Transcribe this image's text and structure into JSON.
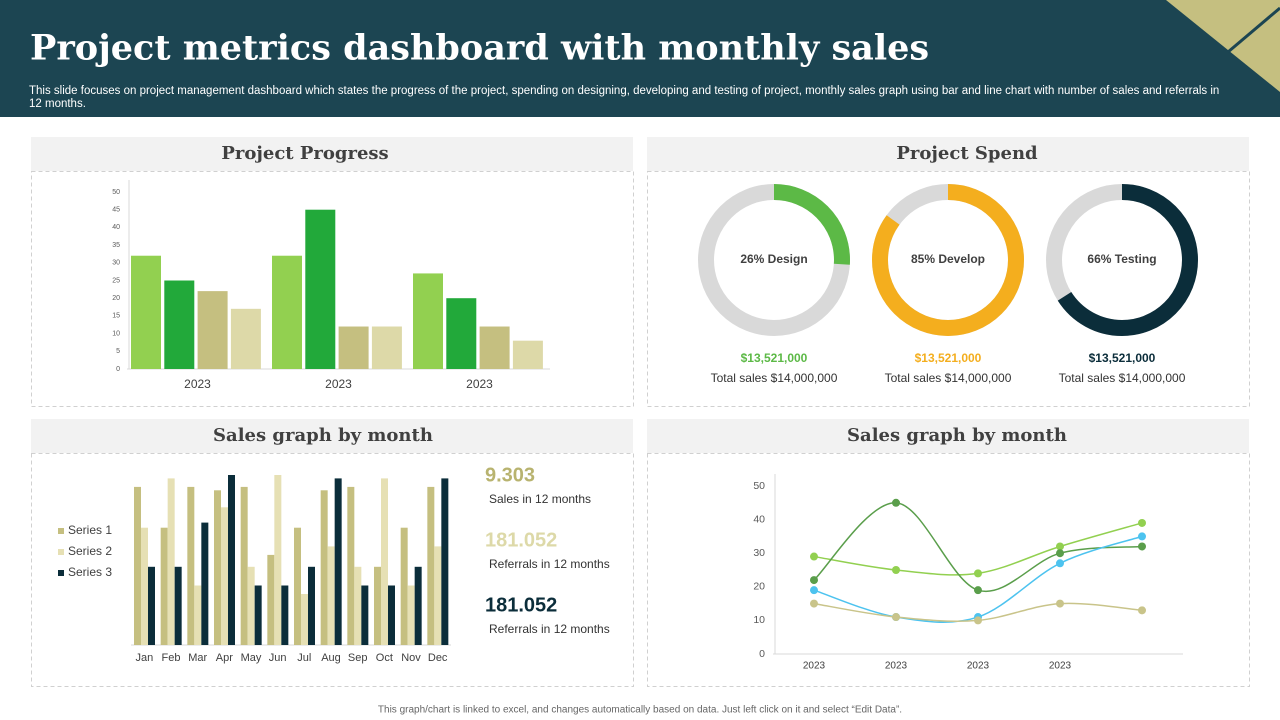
{
  "header": {
    "title": "Project metrics dashboard with monthly sales",
    "subtitle": "This slide focuses on project management dashboard which states the progress of the project, spending on designing, developing and testing of project, monthly sales graph using bar and line chart with number of sales and referrals in 12 months."
  },
  "chart_data": [
    {
      "type": "bar",
      "title": "Project Progress",
      "categories": [
        "2023",
        "2023",
        "2023"
      ],
      "series": [
        {
          "color": "#92d050",
          "values": [
            32,
            32,
            27
          ]
        },
        {
          "color": "#22a93a",
          "values": [
            25,
            45,
            20
          ]
        },
        {
          "color": "#c5bf80",
          "values": [
            22,
            12,
            12
          ]
        },
        {
          "color": "#ddd9a8",
          "values": [
            17,
            12,
            8
          ]
        }
      ],
      "ylim": [
        0,
        50
      ],
      "yticks": [
        0,
        5,
        10,
        15,
        20,
        25,
        30,
        35,
        40,
        45,
        50
      ]
    },
    {
      "type": "donut",
      "title": "Project Spend",
      "values": [
        26,
        85,
        66
      ],
      "labels": [
        "26% Design",
        "85% Develop",
        "66% Testing"
      ],
      "colors": [
        "#5cb946",
        "#f4ae1e",
        "#0b2d3a"
      ],
      "amounts": [
        "$13,521,000",
        "$13,521,000",
        "$13,521,000"
      ],
      "totals": [
        "Total sales $14,000,000",
        "Total sales $14,000,000",
        "Total sales $14,000,000"
      ],
      "track_color": "#d9d9d9"
    },
    {
      "type": "bar",
      "title": "Sales graph by month",
      "categories": [
        "Jan",
        "Feb",
        "Mar",
        "Apr",
        "May",
        "Jun",
        "Jul",
        "Aug",
        "Sep",
        "Oct",
        "Nov",
        "Dec"
      ],
      "series": [
        {
          "name": "Series 1",
          "color": "#c5bf80",
          "values": [
            9.3,
            6.9,
            9.3,
            9.1,
            9.3,
            5.3,
            6.9,
            9.1,
            9.3,
            4.6,
            6.9,
            9.3
          ]
        },
        {
          "name": "Series 2",
          "color": "#e6e0b4",
          "values": [
            6.9,
            9.8,
            3.5,
            8.1,
            4.6,
            10,
            3,
            5.8,
            4.6,
            9.8,
            3.5,
            5.8
          ]
        },
        {
          "name": "Series 3",
          "color": "#0b2d3a",
          "values": [
            4.6,
            4.6,
            7.2,
            10,
            3.5,
            3.5,
            4.6,
            9.8,
            3.5,
            3.5,
            4.6,
            9.8
          ]
        }
      ],
      "ylim": [
        0,
        10
      ],
      "legend": "left"
    },
    {
      "type": "line",
      "title": "Sales graph by month",
      "categories": [
        "2023",
        "2023",
        "2023",
        "2023",
        null
      ],
      "series": [
        {
          "color": "#92d050",
          "values": [
            29,
            25,
            24,
            32,
            39
          ]
        },
        {
          "color": "#5a9e4b",
          "values": [
            22,
            45,
            19,
            30,
            32
          ]
        },
        {
          "color": "#4dc3ef",
          "values": [
            19,
            11,
            11,
            27,
            35
          ]
        },
        {
          "color": "#c9c48a",
          "values": [
            15,
            11,
            10,
            15,
            13
          ]
        }
      ],
      "ylim": [
        0,
        50
      ],
      "yticks": [
        0,
        10,
        20,
        30,
        40,
        50
      ]
    }
  ],
  "stats": [
    {
      "value": 9.303,
      "label": "Sales in 12 months",
      "color": "#b8b36f"
    },
    {
      "value": 181.052,
      "label": "Referrals in 12 months",
      "color": "#ddd9a8"
    },
    {
      "value": 181.052,
      "label": "Referrals in 12 months",
      "color": "#0b2d3a"
    }
  ],
  "footer": "This graph/chart is linked to excel, and changes automatically based on data. Just left click on it and select “Edit Data”."
}
